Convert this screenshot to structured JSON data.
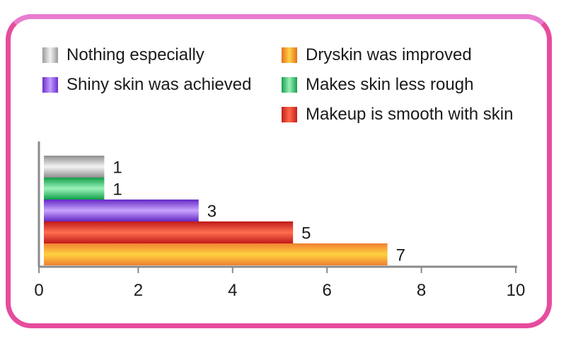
{
  "chart_data": {
    "type": "bar",
    "orientation": "horizontal",
    "legend_position": "top",
    "series": [
      {
        "name": "Nothing especially",
        "value": 1,
        "color": "#c8c8c8"
      },
      {
        "name": "Makes skin less rough",
        "value": 1,
        "color": "#33c46a"
      },
      {
        "name": "Shiny skin was achieved",
        "value": 3,
        "color": "#8a4fe8"
      },
      {
        "name": "Makeup is smooth with skin",
        "value": 5,
        "color": "#e0322a"
      },
      {
        "name": "Dryskin was improved",
        "value": 7,
        "color": "#f5902a"
      }
    ],
    "data_labels": [
      "1",
      "1",
      "3",
      "5",
      "7"
    ],
    "xlim": [
      0,
      10
    ],
    "xticks": [
      "0",
      "2",
      "4",
      "6",
      "8",
      "10"
    ],
    "title": "",
    "xlabel": "",
    "ylabel": "",
    "grid": false
  },
  "legend": {
    "nothing": "Nothing especially",
    "shiny": "Shiny skin was achieved",
    "dryskin": "Dryskin was improved",
    "rough": "Makes skin less rough",
    "makeup": "Makeup is smooth with skin"
  },
  "colors": {
    "frame_border": "#e64c9e",
    "nothing": "#c8c8c8",
    "shiny": "#8a4fe8",
    "dryskin": "#f5902a",
    "rough": "#33c46a",
    "makeup": "#e0322a"
  }
}
